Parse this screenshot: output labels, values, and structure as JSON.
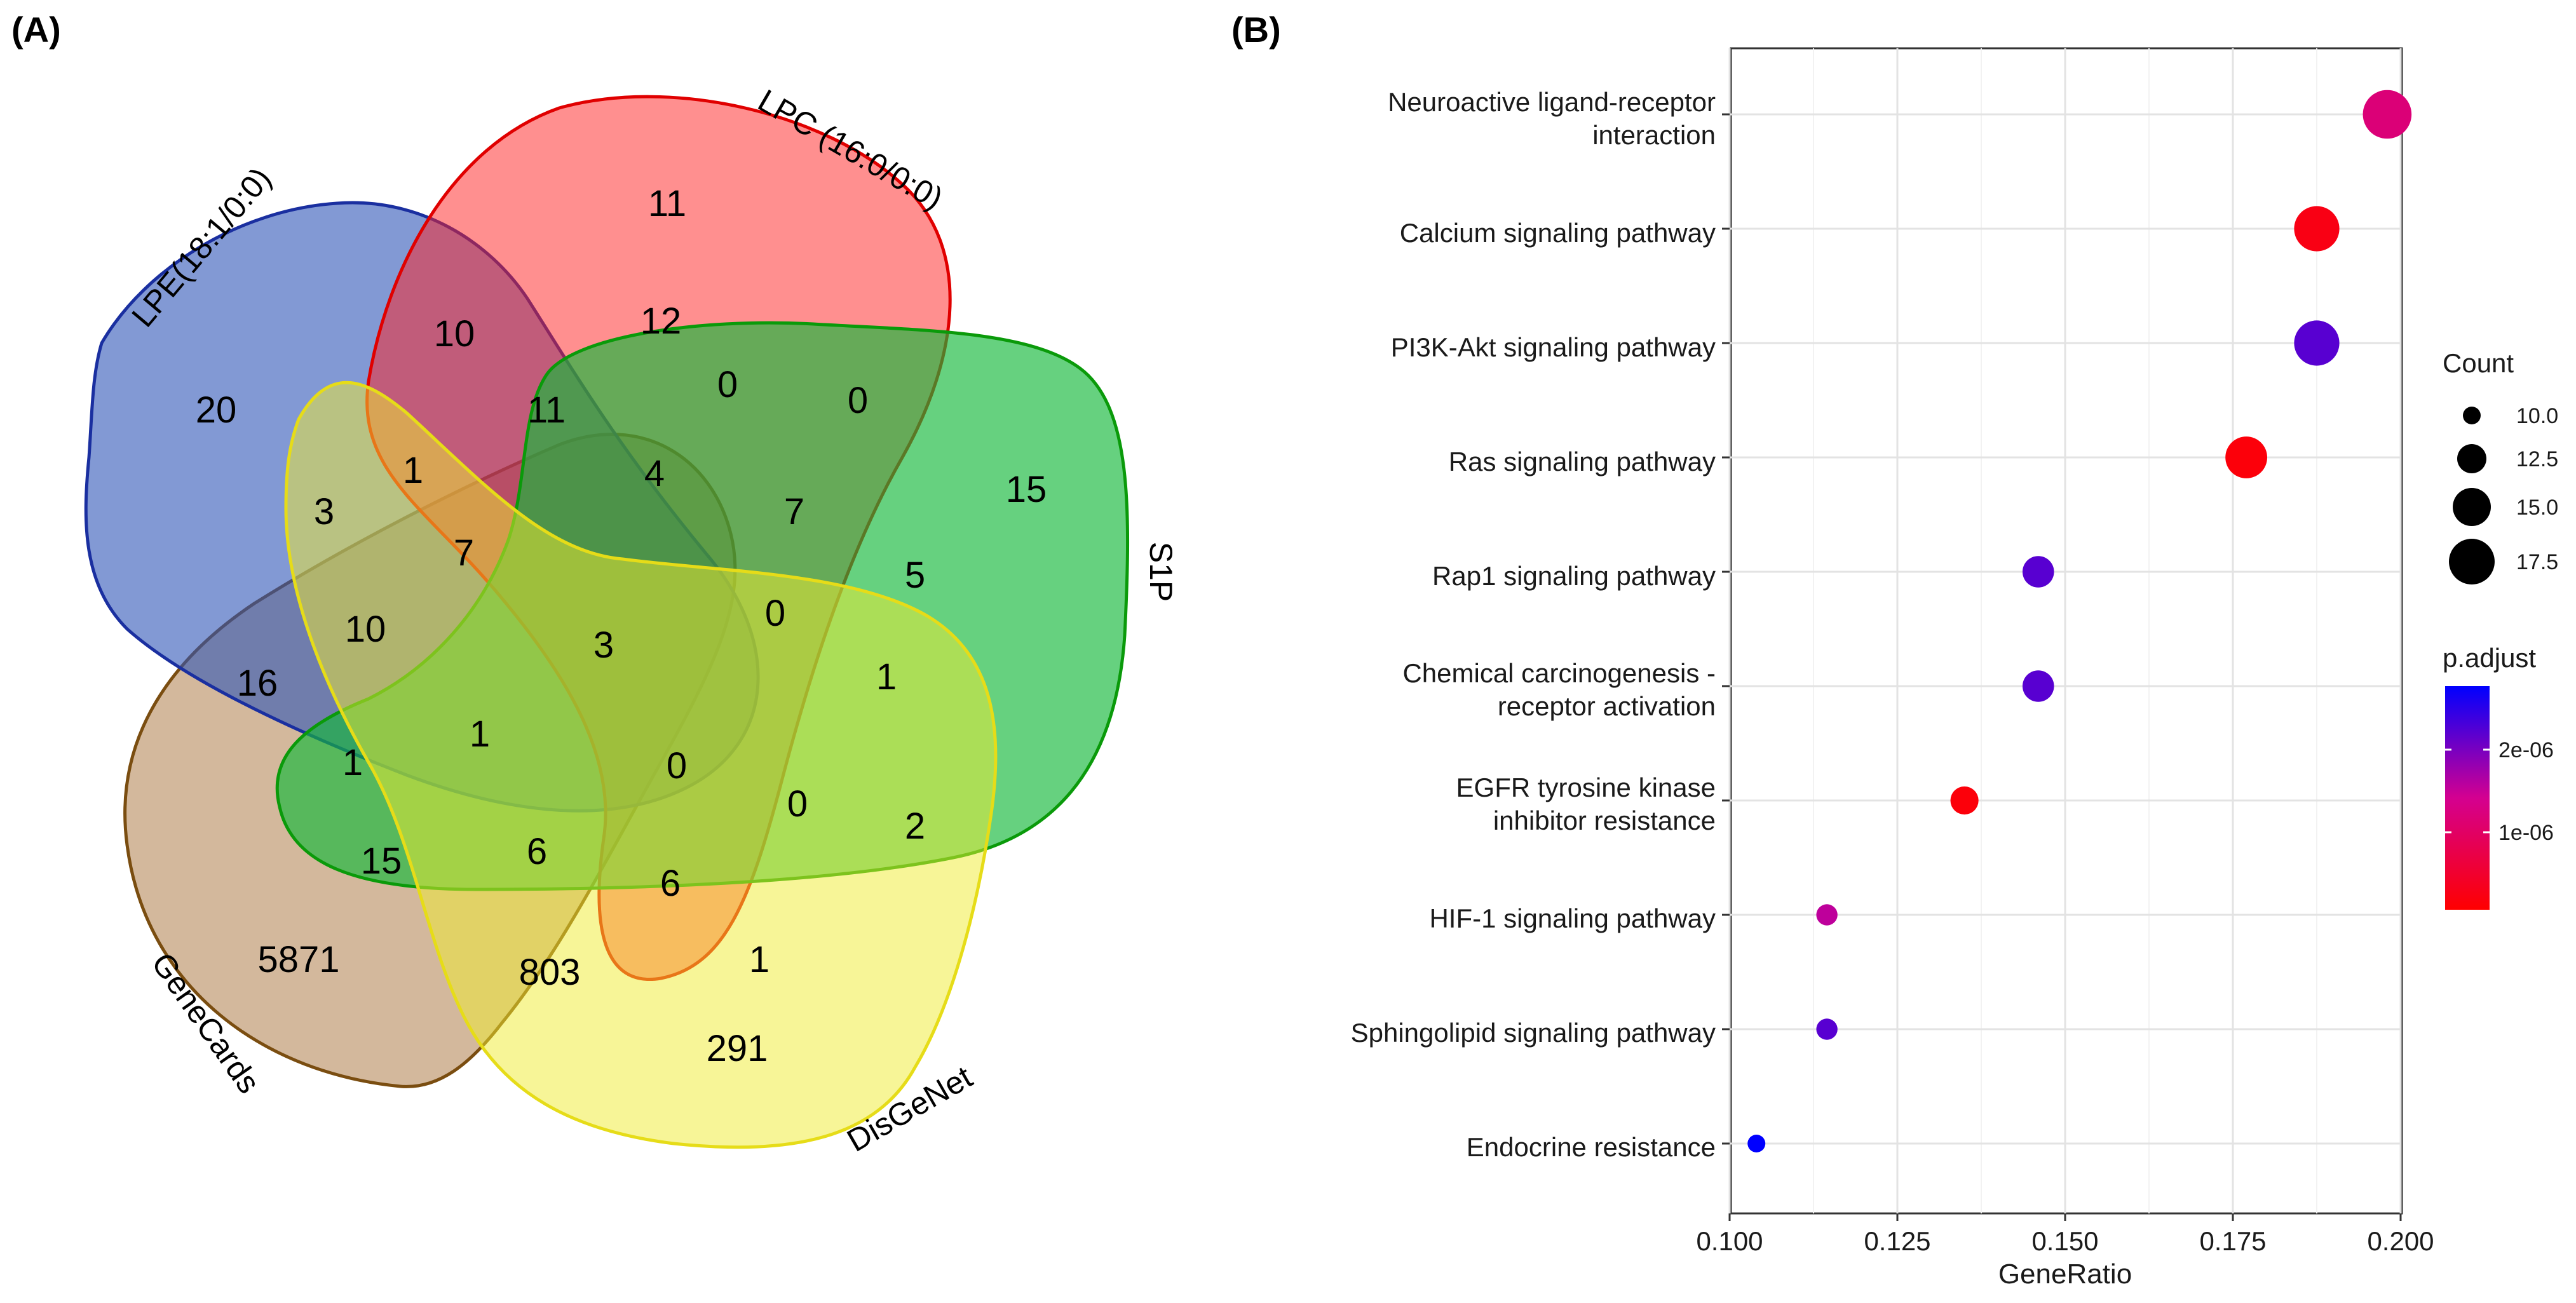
{
  "panel_a_label": "(A)",
  "panel_b_label": "(B)",
  "chart_data": [
    {
      "type": "venn",
      "title": "",
      "sets": [
        {
          "name": "LPE(18:1/0:0)",
          "color": "#2f55b8",
          "only": 20
        },
        {
          "name": "LPC (16:0/0:0)",
          "color": "#ff1f1f",
          "only": 11
        },
        {
          "name": "S1P",
          "color": "#14b83a",
          "only": 15
        },
        {
          "name": "DisGeNet",
          "color": "#f0ec30",
          "only": 291
        },
        {
          "name": "GeneCards",
          "color": "#a8713a",
          "only": 5871
        }
      ],
      "region_values": [
        "20",
        "11",
        "15",
        "291",
        "5871",
        "10",
        "12",
        "11",
        "0",
        "0",
        "4",
        "7",
        "5",
        "3",
        "1",
        "7",
        "3",
        "0",
        "1",
        "10",
        "16",
        "1",
        "1",
        "0",
        "0",
        "2",
        "15",
        "6",
        "6",
        "1",
        "803"
      ]
    },
    {
      "type": "dot",
      "categories": [
        "Neuroactive ligand-receptor interaction",
        "Calcium signaling pathway",
        "PI3K-Akt signaling pathway",
        "Ras signaling pathway",
        "Rap1 signaling pathway",
        "Chemical carcinogenesis - receptor activation",
        "EGFR tyrosine kinase inhibitor resistance",
        "HIF-1 signaling pathway",
        "Sphingolipid signaling pathway",
        "Endocrine resistance"
      ],
      "category_lines": [
        [
          "Neuroactive ligand-receptor",
          "interaction"
        ],
        [
          "Calcium signaling pathway"
        ],
        [
          "PI3K-Akt signaling pathway"
        ],
        [
          "Ras signaling pathway"
        ],
        [
          "Rap1 signaling pathway"
        ],
        [
          "Chemical carcinogenesis -",
          "receptor activation"
        ],
        [
          "EGFR tyrosine kinase",
          "inhibitor resistance"
        ],
        [
          "HIF-1 signaling pathway"
        ],
        [
          "Sphingolipid signaling pathway"
        ],
        [
          "Endocrine resistance"
        ]
      ],
      "gene_ratio": [
        0.198,
        0.1875,
        0.1875,
        0.177,
        0.146,
        0.146,
        0.135,
        0.1145,
        0.1145,
        0.104
      ],
      "count": [
        19,
        18,
        18,
        17,
        14,
        14,
        13,
        11,
        11,
        10
      ],
      "p_adjust": [
        1.2e-06,
        2e-07,
        2.3e-06,
        1e-07,
        2.3e-06,
        2.3e-06,
        1e-07,
        1.6e-06,
        2.3e-06,
        2.9e-06
      ],
      "xlabel": "GeneRatio",
      "xlim": [
        0.1,
        0.2
      ],
      "xticks": [
        "0.100",
        "0.125",
        "0.150",
        "0.175",
        "0.200"
      ],
      "size_legend": {
        "title": "Count",
        "values": [
          "10.0",
          "12.5",
          "15.0",
          "17.5"
        ]
      },
      "color_legend": {
        "title": "p.adjust",
        "tick_labels": [
          "2e-06",
          "1e-06"
        ],
        "tick_values": [
          2e-06,
          1e-06
        ],
        "range": [
          0,
          2.9e-06
        ],
        "low_color": "#ff0000",
        "high_color": "#0000ff"
      }
    }
  ]
}
